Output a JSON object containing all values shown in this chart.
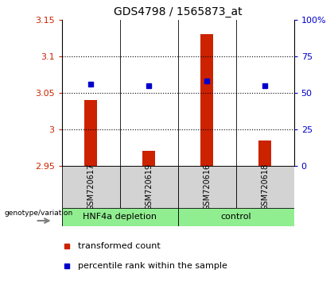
{
  "title": "GDS4798 / 1565873_at",
  "samples": [
    "GSM720617",
    "GSM720619",
    "GSM720616",
    "GSM720618"
  ],
  "bar_values": [
    3.04,
    2.97,
    3.13,
    2.985
  ],
  "dot_values": [
    56,
    55,
    58,
    55
  ],
  "ylim_left": [
    2.95,
    3.15
  ],
  "ylim_right": [
    0,
    100
  ],
  "yticks_left": [
    2.95,
    3.0,
    3.05,
    3.1,
    3.15
  ],
  "yticks_right": [
    0,
    25,
    50,
    75,
    100
  ],
  "ytick_labels_left": [
    "2.95",
    "3",
    "3.05",
    "3.1",
    "3.15"
  ],
  "ytick_labels_right": [
    "0",
    "25",
    "50",
    "75",
    "100%"
  ],
  "grid_lines": [
    3.0,
    3.05,
    3.1
  ],
  "bar_color": "#CC2200",
  "dot_color": "#0000CC",
  "sample_bg_color": "#D3D3D3",
  "group1_color": "#90EE90",
  "group2_color": "#90EE90",
  "baseline": 2.95,
  "bar_width": 0.22,
  "x_positions": [
    0.5,
    1.5,
    2.5,
    3.5
  ],
  "legend_label1": "transformed count",
  "legend_label2": "percentile rank within the sample",
  "group_label": "genotype/variation",
  "group1_name": "HNF4a depletion",
  "group2_name": "control",
  "title_fontsize": 10,
  "tick_fontsize": 8,
  "sample_fontsize": 7,
  "group_fontsize": 8,
  "legend_fontsize": 8
}
